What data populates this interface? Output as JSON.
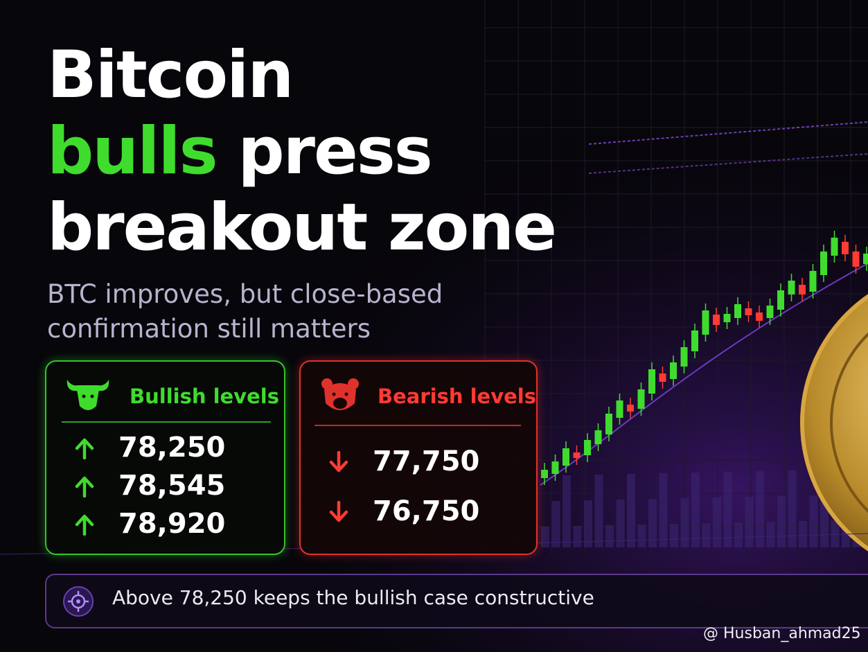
{
  "headline": {
    "line1": "Bitcoin",
    "highlight": "bulls",
    "line2_rest": "press",
    "line3": "breakout zone"
  },
  "subtitle": "BTC improves, but close-based confirmation still matters",
  "bullish": {
    "title": "Bullish levels",
    "levels": [
      "78,250",
      "78,545",
      "78,920"
    ]
  },
  "bearish": {
    "title": "Bearish levels",
    "levels": [
      "77,750",
      "76,750"
    ]
  },
  "note": "Above 78,250 keeps the bullish case constructive",
  "watermark": "@ Husban_ahmad25"
}
